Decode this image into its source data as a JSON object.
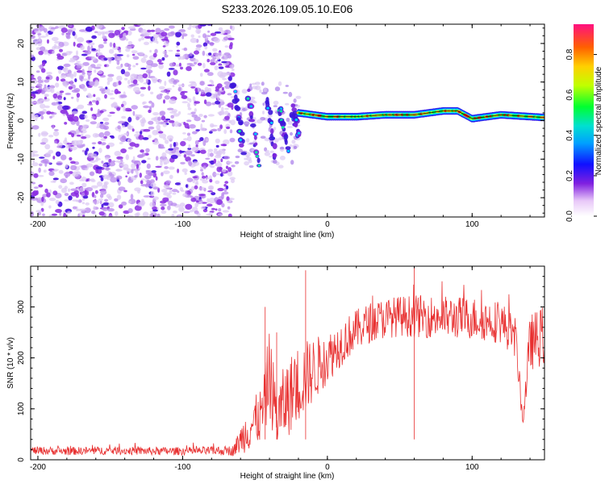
{
  "title": "S233.2026.109.05.10.E06",
  "chart_data": [
    {
      "type": "heatmap",
      "title": "S233.2026.109.05.10.E06",
      "xlabel": "Height of straight line (km)",
      "ylabel": "Frequency (Hz)",
      "xlim": [
        -205,
        150
      ],
      "ylim": [
        -25,
        25
      ],
      "xticks": [
        -200,
        -100,
        0,
        100
      ],
      "yticks": [
        -20,
        -10,
        0,
        10,
        20
      ],
      "noise_region_x": [
        -205,
        -65
      ],
      "transition_region_x": [
        -65,
        -20
      ],
      "carrier_track": {
        "x": [
          -20,
          0,
          20,
          40,
          60,
          80,
          90,
          100,
          120,
          150
        ],
        "y": [
          2,
          1,
          1,
          1.5,
          1.5,
          2.5,
          2.5,
          0.5,
          1.5,
          0.8
        ]
      },
      "colorbar": {
        "label": "Normalized spectral amplitude",
        "range": [
          0,
          0.95
        ],
        "ticks": [
          0.0,
          0.2,
          0.4,
          0.6,
          0.8
        ]
      }
    },
    {
      "type": "line",
      "xlabel": "Height of straight line (km)",
      "ylabel": "SNR (10 * v/v)",
      "xlim": [
        -205,
        150
      ],
      "ylim": [
        0,
        380
      ],
      "xticks": [
        -200,
        -100,
        0,
        100
      ],
      "yticks": [
        0,
        100,
        200,
        300
      ],
      "color": "#e83030",
      "series": [
        {
          "name": "SNR",
          "x": [
            -205,
            -180,
            -150,
            -120,
            -90,
            -65,
            -55,
            -45,
            -40,
            -35,
            -30,
            -20,
            -10,
            0,
            10,
            20,
            30,
            40,
            50,
            60,
            80,
            100,
            120,
            130,
            135,
            140,
            150
          ],
          "mean": [
            18,
            17,
            18,
            17,
            17,
            18,
            60,
            90,
            170,
            80,
            110,
            150,
            175,
            200,
            230,
            255,
            270,
            278,
            282,
            282,
            280,
            278,
            270,
            240,
            75,
            230,
            245
          ],
          "noise": [
            8,
            8,
            8,
            8,
            8,
            10,
            45,
            55,
            90,
            60,
            75,
            80,
            65,
            50,
            45,
            40,
            40,
            40,
            40,
            42,
            42,
            42,
            42,
            40,
            12,
            55,
            60
          ]
        }
      ]
    }
  ]
}
